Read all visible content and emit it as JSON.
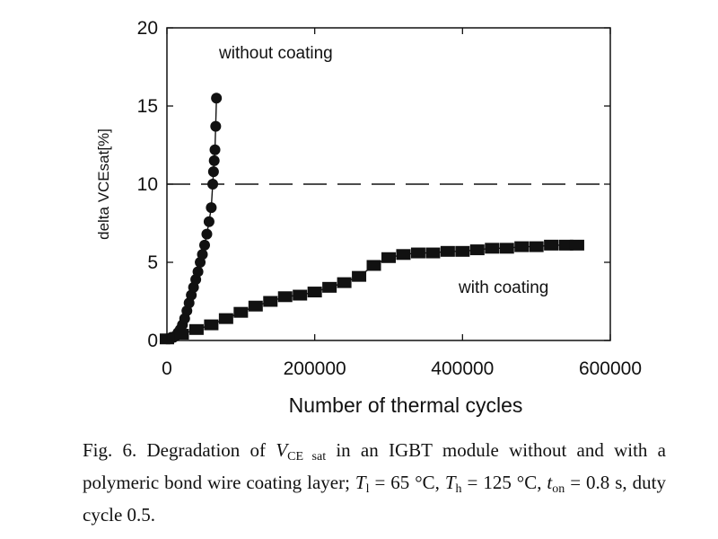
{
  "chart_data": {
    "type": "scatter",
    "xlabel": "Number of thermal cycles",
    "ylabel": "delta VCEsat[%]",
    "xlim": [
      0,
      600000
    ],
    "ylim": [
      0,
      20
    ],
    "xticks": [
      0,
      200000,
      400000,
      600000
    ],
    "xtick_labels": [
      "0",
      "200000",
      "400000",
      "600000"
    ],
    "yticks": [
      0,
      5,
      10,
      15,
      20
    ],
    "ytick_labels": [
      "0",
      "5",
      "10",
      "15",
      "20"
    ],
    "grid": false,
    "threshold": {
      "y": 10,
      "style": "dashed"
    },
    "annotations": [
      {
        "text": "without coating",
        "near_series": "without coating"
      },
      {
        "text": "with coating",
        "near_series": "with coating"
      }
    ],
    "series": [
      {
        "name": "without coating",
        "marker": "circle",
        "x": [
          0,
          3000,
          6000,
          9000,
          12000,
          15000,
          18000,
          21000,
          24000,
          27000,
          30000,
          33000,
          36000,
          39000,
          42000,
          45000,
          48000,
          51000,
          54000,
          57000,
          60000,
          62000,
          63000,
          64000,
          65000,
          66000,
          67000
        ],
        "y": [
          0.1,
          0.1,
          0.2,
          0.2,
          0.3,
          0.5,
          0.7,
          1.0,
          1.4,
          1.9,
          2.4,
          2.9,
          3.4,
          3.9,
          4.4,
          5.0,
          5.5,
          6.1,
          6.8,
          7.6,
          8.5,
          10.0,
          10.8,
          11.5,
          12.2,
          13.7,
          15.5
        ]
      },
      {
        "name": "with coating",
        "marker": "square",
        "x": [
          0,
          20000,
          40000,
          60000,
          80000,
          100000,
          120000,
          140000,
          160000,
          180000,
          200000,
          220000,
          240000,
          260000,
          280000,
          300000,
          320000,
          340000,
          360000,
          380000,
          400000,
          420000,
          440000,
          460000,
          480000,
          500000,
          520000,
          540000,
          555000
        ],
        "y": [
          0.1,
          0.4,
          0.7,
          1.0,
          1.4,
          1.8,
          2.2,
          2.5,
          2.8,
          2.9,
          3.1,
          3.4,
          3.7,
          4.1,
          4.8,
          5.3,
          5.5,
          5.6,
          5.6,
          5.7,
          5.7,
          5.8,
          5.9,
          5.9,
          6.0,
          6.0,
          6.1,
          6.1,
          6.1
        ]
      }
    ]
  },
  "caption": {
    "prefix": "Fig. 6. Degradation of ",
    "v": "V",
    "v_sub": "CE sat",
    "mid": " in an IGBT module without and with a polymeric bond wire coating layer; ",
    "tl": "T",
    "tl_sub": "l",
    "tl_val": " = 65 °C, ",
    "th": "T",
    "th_sub": "h",
    "th_val": " = 125 °C, ",
    "ton": "t",
    "ton_sub": "on",
    "ton_val": " = 0.8 s, duty cycle 0.5."
  }
}
